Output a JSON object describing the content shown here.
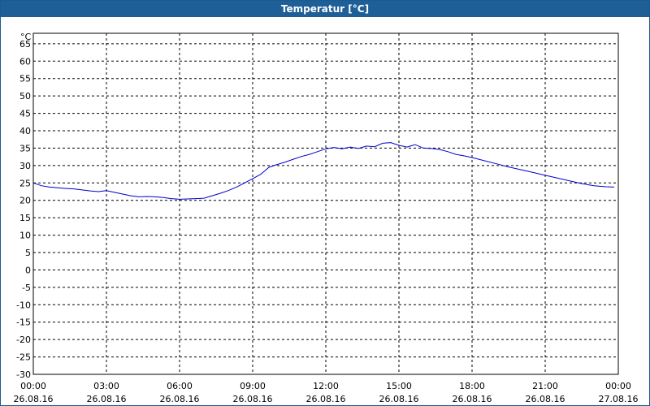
{
  "window": {
    "title": "Temperatur [°C]"
  },
  "chart_data": {
    "type": "line",
    "title": "Temperatur [°C]",
    "ylabel": "°C",
    "ylim": [
      -30,
      68
    ],
    "yticks": [
      65,
      60,
      55,
      50,
      45,
      40,
      35,
      30,
      25,
      20,
      15,
      10,
      5,
      0,
      -5,
      -10,
      -15,
      -20,
      -25,
      -30
    ],
    "xlim": [
      "2016-08-26 00:00",
      "2016-08-27 00:00"
    ],
    "xticks": [
      {
        "time": "00:00",
        "date": "26.08.16"
      },
      {
        "time": "03:00",
        "date": "26.08.16"
      },
      {
        "time": "06:00",
        "date": "26.08.16"
      },
      {
        "time": "09:00",
        "date": "26.08.16"
      },
      {
        "time": "12:00",
        "date": "26.08.16"
      },
      {
        "time": "15:00",
        "date": "26.08.16"
      },
      {
        "time": "18:00",
        "date": "26.08.16"
      },
      {
        "time": "21:00",
        "date": "26.08.16"
      },
      {
        "time": "00:00",
        "date": "27.08.16"
      }
    ],
    "grid": true,
    "series": [
      {
        "color": "#0000cc",
        "x": [
          "00:00",
          "00:20",
          "00:40",
          "01:00",
          "01:20",
          "01:40",
          "02:00",
          "02:20",
          "02:40",
          "03:00",
          "03:20",
          "03:40",
          "04:00",
          "04:20",
          "04:40",
          "05:00",
          "05:20",
          "05:40",
          "06:00",
          "06:20",
          "06:40",
          "07:00",
          "07:20",
          "07:40",
          "08:00",
          "08:20",
          "08:40",
          "09:00",
          "09:20",
          "09:40",
          "10:00",
          "10:20",
          "10:40",
          "11:00",
          "11:20",
          "11:40",
          "12:00",
          "12:20",
          "12:40",
          "13:00",
          "13:20",
          "13:40",
          "14:00",
          "14:20",
          "14:40",
          "15:00",
          "15:20",
          "15:40",
          "16:00",
          "16:20",
          "16:40",
          "17:00",
          "17:20",
          "17:40",
          "18:00",
          "18:30",
          "19:00",
          "19:30",
          "20:00",
          "20:30",
          "21:00",
          "21:30",
          "22:00",
          "22:30",
          "23:00",
          "23:30",
          "23:50"
        ],
        "values": [
          25.0,
          24.2,
          23.8,
          23.6,
          23.4,
          23.3,
          23.0,
          22.7,
          22.5,
          22.8,
          22.3,
          21.8,
          21.3,
          21.0,
          21.1,
          21.0,
          20.8,
          20.5,
          20.3,
          20.4,
          20.5,
          20.6,
          21.3,
          22.0,
          22.8,
          23.8,
          25.0,
          26.2,
          27.5,
          29.5,
          30.3,
          31.0,
          31.8,
          32.6,
          33.2,
          34.0,
          34.8,
          35.2,
          34.8,
          35.3,
          34.9,
          35.6,
          35.4,
          36.4,
          36.6,
          35.8,
          35.3,
          36.0,
          35.0,
          34.9,
          34.6,
          34.0,
          33.2,
          32.8,
          32.3,
          31.4,
          30.5,
          29.6,
          28.8,
          28.0,
          27.2,
          26.4,
          25.6,
          24.8,
          24.2,
          23.9,
          23.8
        ]
      }
    ]
  }
}
